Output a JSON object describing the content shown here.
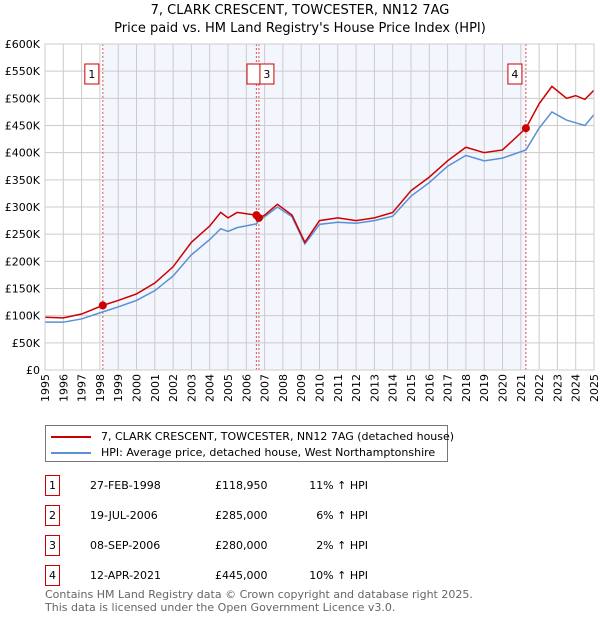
{
  "title": [
    "7, CLARK CRESCENT, TOWCESTER, NN12 7AG",
    "Price paid vs. HM Land Registry's House Price Index (HPI)"
  ],
  "chart_data": {
    "type": "line",
    "title": "7, CLARK CRESCENT, TOWCESTER, NN12 7AG — Price paid vs. HM Land Registry's House Price Index (HPI)",
    "xlim": [
      1995,
      2025
    ],
    "ylim": [
      0,
      600000
    ],
    "xticks": [
      "1995",
      "1996",
      "1997",
      "1998",
      "1999",
      "2000",
      "2001",
      "2002",
      "2003",
      "2004",
      "2005",
      "2006",
      "2007",
      "2008",
      "2009",
      "2010",
      "2011",
      "2012",
      "2013",
      "2014",
      "2015",
      "2016",
      "2017",
      "2018",
      "2019",
      "2020",
      "2021",
      "2022",
      "2023",
      "2024",
      "2025"
    ],
    "yticks": [
      "£0",
      "£50K",
      "£100K",
      "£150K",
      "£200K",
      "£250K",
      "£300K",
      "£350K",
      "£400K",
      "£450K",
      "£500K",
      "£550K",
      "£600K"
    ],
    "grid": true,
    "series": [
      {
        "name": "7, CLARK CRESCENT, TOWCESTER, NN12 7AG (detached house)",
        "color": "#cc0000",
        "x": [
          1995,
          1996,
          1997,
          1998.16,
          1999,
          2000,
          2001,
          2002,
          2003,
          2004,
          2004.6,
          2005,
          2005.5,
          2006.55,
          2006.69,
          2007,
          2007.7,
          2008.5,
          2009.2,
          2010,
          2011,
          2012,
          2013,
          2014,
          2015,
          2016,
          2017,
          2018,
          2019,
          2020,
          2021.28,
          2022,
          2022.7,
          2023.5,
          2024,
          2024.5,
          2025
        ],
        "y": [
          97000,
          96000,
          103000,
          118950,
          128000,
          140000,
          160000,
          190000,
          235000,
          265000,
          290000,
          280000,
          290000,
          285000,
          280000,
          285000,
          305000,
          285000,
          235000,
          275000,
          280000,
          275000,
          280000,
          290000,
          330000,
          355000,
          385000,
          410000,
          400000,
          405000,
          445000,
          490000,
          522000,
          500000,
          505000,
          498000,
          515000
        ]
      },
      {
        "name": "HPI: Average price, detached house, West Northamptonshire",
        "color": "#5b8fd6",
        "x": [
          1995,
          1996,
          1997,
          1998.16,
          1999,
          2000,
          2001,
          2002,
          2003,
          2004,
          2004.6,
          2005,
          2005.5,
          2006.55,
          2006.69,
          2007,
          2007.7,
          2008.5,
          2009.2,
          2010,
          2011,
          2012,
          2013,
          2014,
          2015,
          2016,
          2017,
          2018,
          2019,
          2020,
          2021.28,
          2022,
          2022.7,
          2023.5,
          2024,
          2024.5,
          2025
        ],
        "y": [
          88000,
          88000,
          94000,
          107000,
          116000,
          128000,
          146000,
          173000,
          212000,
          240000,
          260000,
          255000,
          262000,
          269000,
          275000,
          282000,
          300000,
          282000,
          232000,
          268000,
          272000,
          270000,
          275000,
          283000,
          320000,
          345000,
          375000,
          395000,
          385000,
          390000,
          405000,
          445000,
          475000,
          460000,
          455000,
          450000,
          470000
        ]
      }
    ],
    "sales": [
      {
        "label": "1",
        "x": 1998.16,
        "y": 118950,
        "date": "27-FEB-1998",
        "price": "£118,950",
        "hpi": "11% ↑ HPI"
      },
      {
        "label": "2",
        "x": 2006.55,
        "y": 285000,
        "date": "19-JUL-2006",
        "price": "£285,000",
        "hpi": "6% ↑ HPI"
      },
      {
        "label": "3",
        "x": 2006.69,
        "y": 280000,
        "date": "08-SEP-2006",
        "price": "£280,000",
        "hpi": "2% ↑ HPI"
      },
      {
        "label": "4",
        "x": 2021.28,
        "y": 445000,
        "date": "12-APR-2021",
        "price": "£445,000",
        "hpi": "10% ↑ HPI"
      }
    ]
  },
  "legend": [
    "7, CLARK CRESCENT, TOWCESTER, NN12 7AG (detached house)",
    "HPI: Average price, detached house, West Northamptonshire"
  ],
  "footer": [
    "Contains HM Land Registry data © Crown copyright and database right 2025.",
    "This data is licensed under the Open Government Licence v3.0."
  ]
}
